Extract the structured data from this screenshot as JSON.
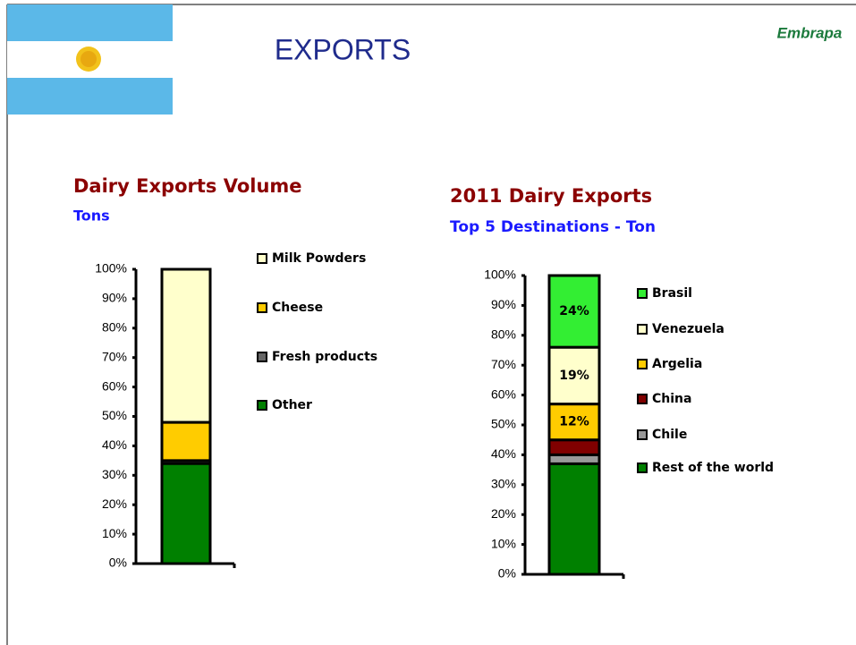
{
  "title": "EXPORTS",
  "logo": "Embrapa",
  "chart_data": [
    {
      "type": "bar",
      "stacked": true,
      "title": "Dairy Exports Volume",
      "subtitle": "Tons",
      "categories": [
        null
      ],
      "series": [
        {
          "name": "Other",
          "color": "#008000",
          "values": [
            34
          ]
        },
        {
          "name": "Fresh products",
          "color": "#666666",
          "values": [
            1
          ]
        },
        {
          "name": "Cheese",
          "color": "#ffcc00",
          "values": [
            13
          ]
        },
        {
          "name": "Milk Powders",
          "color": "#ffffcc",
          "values": [
            52
          ]
        }
      ],
      "ylim": [
        0,
        100
      ],
      "yticks": [
        {
          "value": 0,
          "label": "0%"
        },
        {
          "value": 10,
          "label": "10%"
        },
        {
          "value": 20,
          "label": "20%"
        },
        {
          "value": 30,
          "label": "30%"
        },
        {
          "value": 40,
          "label": "40%"
        },
        {
          "value": 50,
          "label": "50%"
        },
        {
          "value": 60,
          "label": "60%"
        },
        {
          "value": 70,
          "label": "70%"
        },
        {
          "value": 80,
          "label": "80%"
        },
        {
          "value": 90,
          "label": "90%"
        },
        {
          "value": 100,
          "label": "100%"
        }
      ]
    },
    {
      "type": "bar",
      "stacked": true,
      "title": "2011 Dairy Exports",
      "subtitle": "Top 5 Destinations - Ton",
      "categories": [
        null
      ],
      "series": [
        {
          "name": "Rest of the world",
          "color": "#008000",
          "values": [
            37
          ]
        },
        {
          "name": "Chile",
          "color": "#999999",
          "values": [
            3
          ]
        },
        {
          "name": "China",
          "color": "#800000",
          "values": [
            5
          ]
        },
        {
          "name": "Argelia",
          "color": "#ffcc00",
          "values": [
            12
          ],
          "value_labels": [
            "12%"
          ]
        },
        {
          "name": "Venezuela",
          "color": "#ffffcc",
          "values": [
            19
          ],
          "value_labels": [
            "19%"
          ]
        },
        {
          "name": "Brasil",
          "color": "#33ee33",
          "values": [
            24
          ],
          "value_labels": [
            "24%"
          ]
        }
      ],
      "ylim": [
        0,
        100
      ],
      "yticks": [
        {
          "value": 0,
          "label": "0%"
        },
        {
          "value": 10,
          "label": "10%"
        },
        {
          "value": 20,
          "label": "20%"
        },
        {
          "value": 30,
          "label": "30%"
        },
        {
          "value": 40,
          "label": "40%"
        },
        {
          "value": 50,
          "label": "50%"
        },
        {
          "value": 60,
          "label": "60%"
        },
        {
          "value": 70,
          "label": "70%"
        },
        {
          "value": 80,
          "label": "80%"
        },
        {
          "value": 90,
          "label": "90%"
        },
        {
          "value": 100,
          "label": "100%"
        }
      ]
    }
  ]
}
